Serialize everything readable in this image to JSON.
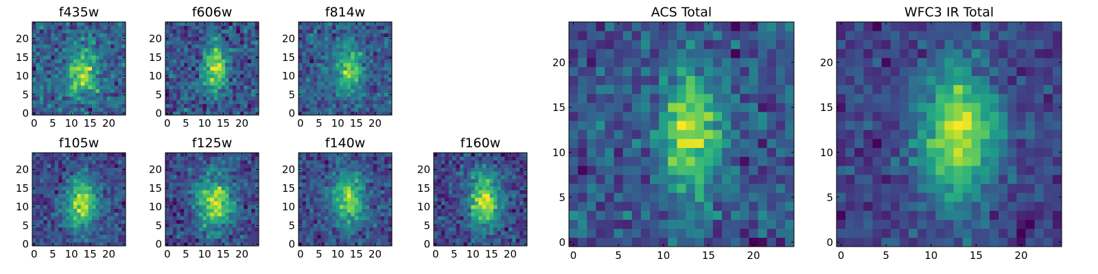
{
  "chart_data": [
    {
      "type": "heatmap",
      "title": "f435w",
      "xticks": [
        0,
        5,
        10,
        15,
        20
      ],
      "yticks": [
        0,
        5,
        10,
        15,
        20
      ],
      "xlim": [
        -0.5,
        24.5
      ],
      "ylim": [
        -0.5,
        24.5
      ],
      "grid_size": [
        25,
        25
      ],
      "colormap": "viridis",
      "peak_center": [
        13,
        11
      ],
      "peak_sigma": [
        3.0,
        4.5
      ],
      "noise": 0.45,
      "seed": 11
    },
    {
      "type": "heatmap",
      "title": "f606w",
      "xticks": [
        0,
        5,
        10,
        15,
        20
      ],
      "yticks": [
        0,
        5,
        10,
        15,
        20
      ],
      "xlim": [
        -0.5,
        24.5
      ],
      "ylim": [
        -0.5,
        24.5
      ],
      "grid_size": [
        25,
        25
      ],
      "colormap": "viridis",
      "peak_center": [
        13,
        12
      ],
      "peak_sigma": [
        2.2,
        4.5
      ],
      "noise": 0.35,
      "seed": 22
    },
    {
      "type": "heatmap",
      "title": "f814w",
      "xticks": [
        0,
        5,
        10,
        15,
        20
      ],
      "yticks": [
        0,
        5,
        10,
        15,
        20
      ],
      "xlim": [
        -0.5,
        24.5
      ],
      "ylim": [
        -0.5,
        24.5
      ],
      "grid_size": [
        25,
        25
      ],
      "colormap": "viridis",
      "peak_center": [
        13,
        12
      ],
      "peak_sigma": [
        2.3,
        4.5
      ],
      "noise": 0.38,
      "seed": 33
    },
    {
      "type": "heatmap",
      "title": "f105w",
      "xticks": [
        0,
        5,
        10,
        15,
        20
      ],
      "yticks": [
        0,
        5,
        10,
        15,
        20
      ],
      "xlim": [
        -0.5,
        24.5
      ],
      "ylim": [
        -0.5,
        24.5
      ],
      "grid_size": [
        25,
        25
      ],
      "colormap": "viridis",
      "peak_center": [
        13,
        11
      ],
      "peak_sigma": [
        3.0,
        5.0
      ],
      "noise": 0.28,
      "seed": 44
    },
    {
      "type": "heatmap",
      "title": "f125w",
      "xticks": [
        0,
        5,
        10,
        15,
        20
      ],
      "yticks": [
        0,
        5,
        10,
        15,
        20
      ],
      "xlim": [
        -0.5,
        24.5
      ],
      "ylim": [
        -0.5,
        24.5
      ],
      "grid_size": [
        25,
        25
      ],
      "colormap": "viridis",
      "peak_center": [
        13,
        11
      ],
      "peak_sigma": [
        3.2,
        5.0
      ],
      "noise": 0.3,
      "seed": 55
    },
    {
      "type": "heatmap",
      "title": "f140w",
      "xticks": [
        0,
        5,
        10,
        15,
        20
      ],
      "yticks": [
        0,
        5,
        10,
        15,
        20
      ],
      "xlim": [
        -0.5,
        24.5
      ],
      "ylim": [
        -0.5,
        24.5
      ],
      "grid_size": [
        25,
        25
      ],
      "colormap": "viridis",
      "peak_center": [
        13,
        12
      ],
      "peak_sigma": [
        3.0,
        4.5
      ],
      "noise": 0.3,
      "seed": 66
    },
    {
      "type": "heatmap",
      "title": "f160w",
      "xticks": [
        0,
        5,
        10,
        15,
        20
      ],
      "yticks": [
        0,
        5,
        10,
        15,
        20
      ],
      "xlim": [
        -0.5,
        24.5
      ],
      "ylim": [
        -0.5,
        24.5
      ],
      "grid_size": [
        25,
        25
      ],
      "colormap": "viridis",
      "peak_center": [
        13,
        12
      ],
      "peak_sigma": [
        3.0,
        5.5
      ],
      "noise": 0.28,
      "seed": 77
    },
    {
      "type": "heatmap",
      "title": "ACS Total",
      "xticks": [
        0,
        5,
        10,
        15,
        20
      ],
      "yticks": [
        0,
        5,
        10,
        15,
        20
      ],
      "xlim": [
        -0.5,
        24.5
      ],
      "ylim": [
        -0.5,
        24.5
      ],
      "grid_size": [
        25,
        25
      ],
      "colormap": "viridis",
      "peak_center": [
        13,
        12
      ],
      "peak_sigma": [
        2.3,
        4.8
      ],
      "noise": 0.3,
      "seed": 88
    },
    {
      "type": "heatmap",
      "title": "WFC3 IR Total",
      "xticks": [
        0,
        5,
        10,
        15,
        20
      ],
      "yticks": [
        0,
        5,
        10,
        15,
        20
      ],
      "xlim": [
        -0.5,
        24.5
      ],
      "ylim": [
        -0.5,
        24.5
      ],
      "grid_size": [
        25,
        25
      ],
      "colormap": "viridis",
      "peak_center": [
        13,
        12
      ],
      "peak_sigma": [
        3.0,
        5.2
      ],
      "noise": 0.22,
      "seed": 99
    }
  ]
}
